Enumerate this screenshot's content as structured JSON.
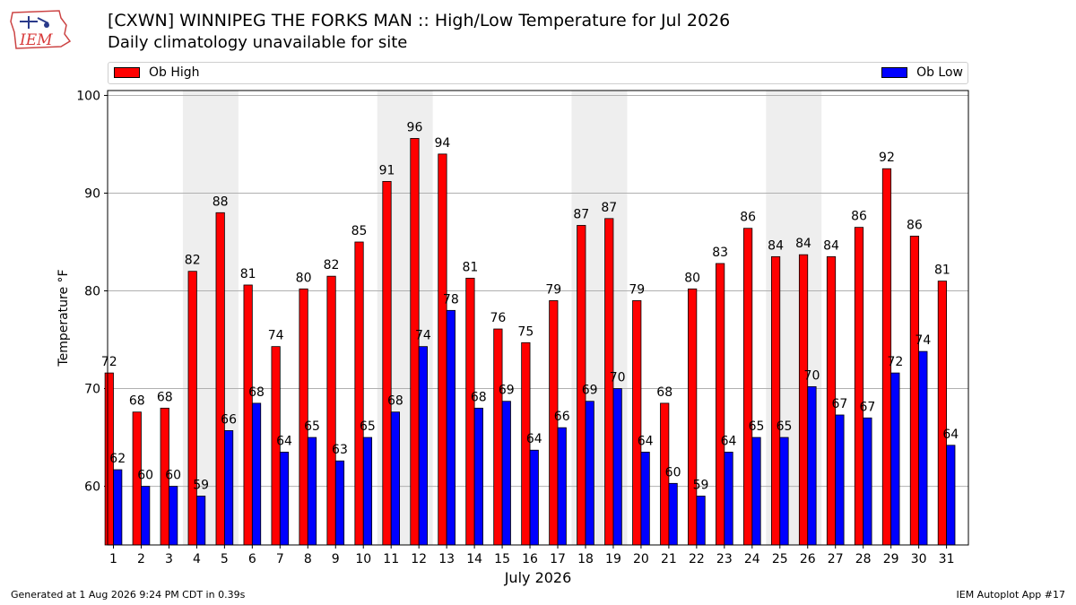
{
  "header": {
    "logo_text": "IEM",
    "title": "[CXWN] WINNIPEG THE FORKS  MAN :: High/Low Temperature for Jul 2026",
    "subtitle": "Daily climatology unavailable for site"
  },
  "footer": {
    "generated": "Generated at 1 Aug 2026 9:24 PM CDT in 0.39s",
    "app": "IEM Autoplot App #17"
  },
  "colors": {
    "high": "#ff0000",
    "low": "#0000ff",
    "weekend_band": "#eeeeee",
    "grid": "#b0b0b0"
  },
  "chart_data": {
    "type": "bar",
    "xlabel": "July 2026",
    "ylabel": "Temperature °F",
    "ylim": [
      54,
      100.5
    ],
    "yticks": [
      60,
      70,
      80,
      90,
      100
    ],
    "grid": true,
    "legend_placement": "top",
    "categories": [
      "1",
      "2",
      "3",
      "4",
      "5",
      "6",
      "7",
      "8",
      "9",
      "10",
      "11",
      "12",
      "13",
      "14",
      "15",
      "16",
      "17",
      "18",
      "19",
      "20",
      "21",
      "22",
      "23",
      "24",
      "25",
      "26",
      "27",
      "28",
      "29",
      "30",
      "31"
    ],
    "weekend_bands": [
      [
        4,
        5
      ],
      [
        11,
        12
      ],
      [
        18,
        19
      ],
      [
        25,
        26
      ]
    ],
    "series": [
      {
        "name": "Ob High",
        "values": [
          71.6,
          67.6,
          68.0,
          82.0,
          88.0,
          80.6,
          74.3,
          80.2,
          81.5,
          85.0,
          91.2,
          95.6,
          94.0,
          81.3,
          76.1,
          74.7,
          79.0,
          86.7,
          87.4,
          79.0,
          68.5,
          80.2,
          82.8,
          86.4,
          83.5,
          83.7,
          83.5,
          86.5,
          92.5,
          85.6,
          81.0
        ],
        "labels": [
          "72",
          "68",
          "68",
          "82",
          "88",
          "81",
          "74",
          "80",
          "82",
          "85",
          "91",
          "96",
          "94",
          "81",
          "76",
          "75",
          "79",
          "87",
          "87",
          "79",
          "68",
          "80",
          "83",
          "86",
          "84",
          "84",
          "84",
          "86",
          "92",
          "86",
          "81"
        ]
      },
      {
        "name": "Ob Low",
        "values": [
          61.7,
          60.0,
          60.0,
          59.0,
          65.7,
          68.5,
          63.5,
          65.0,
          62.6,
          65.0,
          67.6,
          74.3,
          78.0,
          68.0,
          68.7,
          63.7,
          66.0,
          68.7,
          70.0,
          63.5,
          60.3,
          59.0,
          63.5,
          65.0,
          65.0,
          70.2,
          67.3,
          67.0,
          71.6,
          73.8,
          64.2
        ],
        "labels": [
          "62",
          "60",
          "60",
          "59",
          "66",
          "68",
          "64",
          "65",
          "63",
          "65",
          "68",
          "74",
          "78",
          "68",
          "69",
          "64",
          "66",
          "69",
          "70",
          "64",
          "60",
          "59",
          "64",
          "65",
          "65",
          "70",
          "67",
          "67",
          "72",
          "74",
          "64"
        ]
      }
    ]
  }
}
